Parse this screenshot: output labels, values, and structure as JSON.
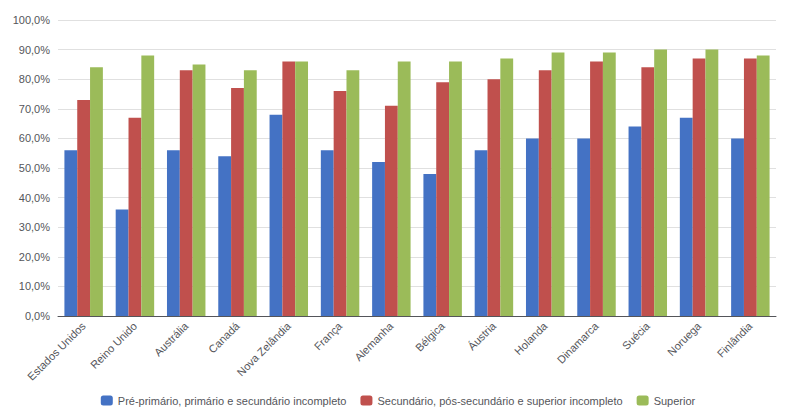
{
  "chart_data": {
    "type": "bar",
    "categories": [
      "Estados Unidos",
      "Reino Unido",
      "Austrália",
      "Canadá",
      "Nova Zelândia",
      "França",
      "Alemanha",
      "Bélgica",
      "Áustria",
      "Holanda",
      "Dinamarca",
      "Suécia",
      "Noruega",
      "Finlândia"
    ],
    "series": [
      {
        "name": "Pré-primário, primário e secundário incompleto",
        "color": "#4472C4",
        "values": [
          56,
          36,
          56,
          54,
          68,
          56,
          52,
          48,
          56,
          60,
          60,
          64,
          67,
          60
        ]
      },
      {
        "name": "Secundário, pós-secundário e superior incompleto",
        "color": "#C0504D",
        "values": [
          73,
          67,
          83,
          77,
          86,
          76,
          71,
          79,
          80,
          83,
          86,
          84,
          87,
          87
        ]
      },
      {
        "name": "Superior",
        "color": "#9BBB59",
        "values": [
          84,
          88,
          85,
          83,
          86,
          83,
          86,
          86,
          87,
          89,
          89,
          90,
          90,
          88
        ]
      }
    ],
    "ylim": [
      0,
      100
    ],
    "yticks": [
      {
        "value": 0,
        "label": "0,0%"
      },
      {
        "value": 10,
        "label": "10,0%"
      },
      {
        "value": 20,
        "label": "20,0%"
      },
      {
        "value": 30,
        "label": "30,0%"
      },
      {
        "value": 40,
        "label": "40,0%"
      },
      {
        "value": 50,
        "label": "50,0%"
      },
      {
        "value": 60,
        "label": "60,0%"
      },
      {
        "value": 70,
        "label": "70,0%"
      },
      {
        "value": 80,
        "label": "80,0%"
      },
      {
        "value": 90,
        "label": "90,0%"
      },
      {
        "value": 100,
        "label": "100,0%"
      }
    ],
    "grid": true,
    "legend": "bottom"
  }
}
